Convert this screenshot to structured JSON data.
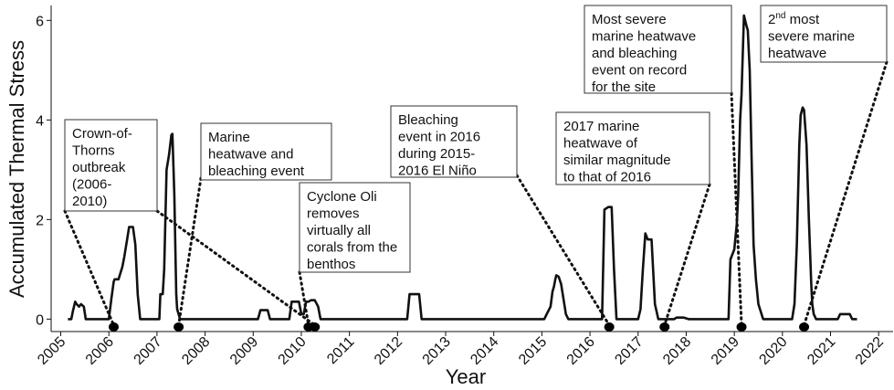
{
  "chart_data": {
    "type": "line",
    "xlabel": "Year",
    "ylabel": "Accumulated Thermal Stress",
    "xlim": [
      2004.8,
      2022.3
    ],
    "ylim": [
      -0.25,
      6.3
    ],
    "yticks": [
      0,
      2,
      4,
      6
    ],
    "xticks": [
      2005,
      2006,
      2007,
      2008,
      2009,
      2010,
      2011,
      2012,
      2013,
      2014,
      2015,
      2016,
      2017,
      2018,
      2019,
      2020,
      2021,
      2022
    ],
    "grid": false,
    "line_color": "#111111",
    "series": [
      {
        "x": [
          2005.15,
          2005.22,
          2005.25,
          2005.3,
          2005.33,
          2005.38,
          2005.42,
          2005.48,
          2005.52,
          2005.6,
          2005.95,
          2006.0,
          2006.05,
          2006.1,
          2006.12,
          2006.2,
          2006.28,
          2006.32,
          2006.38,
          2006.42,
          2006.5,
          2006.55,
          2006.6,
          2006.65,
          2006.95,
          2007.05,
          2007.07,
          2007.12,
          2007.15,
          2007.2,
          2007.25,
          2007.3,
          2007.32,
          2007.36,
          2007.4,
          2007.42,
          2007.48,
          2007.55,
          2009.1,
          2009.15,
          2009.3,
          2009.35,
          2009.75,
          2009.8,
          2009.85,
          2009.95,
          2010.0,
          2010.05,
          2010.1,
          2010.15,
          2010.2,
          2010.28,
          2010.35,
          2010.4,
          2010.5,
          2012.2,
          2012.25,
          2012.45,
          2012.5,
          2015.05,
          2015.1,
          2015.18,
          2015.22,
          2015.25,
          2015.28,
          2015.3,
          2015.35,
          2015.4,
          2015.45,
          2015.5,
          2015.55,
          2016.25,
          2016.3,
          2016.38,
          2016.45,
          2016.5,
          2016.55,
          2016.9,
          2017.0,
          2017.05,
          2017.1,
          2017.15,
          2017.2,
          2017.28,
          2017.35,
          2017.42,
          2017.75,
          2017.8,
          2017.95,
          2018.05,
          2018.88,
          2018.92,
          2019.0,
          2019.05,
          2019.08,
          2019.12,
          2019.15,
          2019.2,
          2019.25,
          2019.28,
          2019.32,
          2019.36,
          2019.4,
          2019.45,
          2019.5,
          2019.6,
          2019.8,
          2020.2,
          2020.25,
          2020.3,
          2020.35,
          2020.38,
          2020.42,
          2020.45,
          2020.5,
          2020.55,
          2020.6,
          2020.62,
          2020.65,
          2020.7,
          2020.75,
          2021.15,
          2021.2,
          2021.4,
          2021.45,
          2021.55
        ],
        "y": [
          0,
          0,
          0.15,
          0.35,
          0.3,
          0.25,
          0.3,
          0.25,
          0,
          0,
          0,
          0,
          0.4,
          0.75,
          0.8,
          0.8,
          1.05,
          1.25,
          1.6,
          1.85,
          1.85,
          1.5,
          0.5,
          0,
          0,
          0,
          0.5,
          0.5,
          1.0,
          3.0,
          3.3,
          3.7,
          3.72,
          2.5,
          0.5,
          0.2,
          0,
          0,
          0,
          0.18,
          0.18,
          0,
          0,
          0.35,
          0.35,
          0.35,
          0.1,
          0.1,
          0.35,
          0.35,
          0.38,
          0.38,
          0.25,
          0,
          0,
          0,
          0.5,
          0.5,
          0,
          0,
          0.1,
          0.25,
          0.55,
          0.65,
          0.8,
          0.88,
          0.85,
          0.7,
          0.4,
          0.1,
          0,
          0,
          2.2,
          2.25,
          2.25,
          1.0,
          0,
          0,
          0,
          0.2,
          1.0,
          1.72,
          1.6,
          1.6,
          0.3,
          0,
          0,
          0.03,
          0.03,
          0,
          0,
          1.2,
          1.4,
          1.9,
          2.5,
          4.0,
          4.5,
          6.1,
          5.9,
          5.8,
          5.0,
          3.2,
          1.5,
          0.8,
          0.3,
          0,
          0,
          0,
          0.3,
          1.5,
          3.5,
          4.1,
          4.25,
          4.2,
          3.5,
          2.0,
          0.7,
          0.3,
          0.1,
          0,
          0,
          0,
          0.1,
          0.1,
          0,
          0
        ]
      }
    ],
    "events": [
      {
        "year": 2006.1
      },
      {
        "year": 2007.45
      },
      {
        "year": 2010.15
      },
      {
        "year": 2010.28
      },
      {
        "year": 2016.4
      },
      {
        "year": 2017.55
      },
      {
        "year": 2019.15
      },
      {
        "year": 2020.45
      }
    ],
    "annotations": [
      {
        "lines": [
          "Crown-of-",
          "Thorns",
          "outbreak",
          "(2006-",
          "2010)"
        ],
        "marker_year": 2006.1
      },
      {
        "lines": [
          "Marine",
          "heatwave and",
          "bleaching event"
        ],
        "marker_year": 2007.45
      },
      {
        "lines": [
          "Cyclone Oli",
          "removes",
          "virtually all",
          "corals from the",
          "benthos"
        ],
        "marker_year": 2010.15
      },
      {
        "lines": [
          "Bleaching",
          "event in 2016",
          "during 2015-",
          "2016 El Niño"
        ],
        "marker_year": 2016.4
      },
      {
        "lines": [
          "2017 marine",
          "heatwave of",
          "similar magnitude",
          "to that of 2016"
        ],
        "marker_year": 2017.55
      },
      {
        "lines": [
          "Most severe",
          "marine heatwave",
          "and bleaching",
          "event on record",
          "for the site"
        ],
        "marker_year": 2019.15
      },
      {
        "lines": [
          "2nd most",
          "severe marine",
          "heatwave"
        ],
        "marker_year": 2020.45
      }
    ]
  }
}
